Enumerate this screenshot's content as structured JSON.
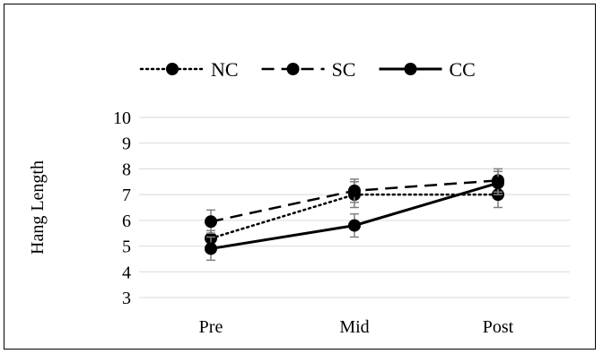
{
  "chart_data": {
    "type": "line",
    "title": "",
    "xlabel": "",
    "ylabel": "Hang Length",
    "categories": [
      "Pre",
      "Mid",
      "Post"
    ],
    "ylim": [
      3,
      10
    ],
    "yticks": [
      3,
      4,
      5,
      6,
      7,
      8,
      9,
      10
    ],
    "grid": true,
    "legend_position": "top",
    "error_bars": true,
    "series": [
      {
        "name": "NC",
        "style": "dotted",
        "color": "#000000",
        "values": [
          5.3,
          7.0,
          7.0
        ],
        "errors": [
          0.3,
          0.5,
          0.5
        ]
      },
      {
        "name": "SC",
        "style": "dashed",
        "color": "#000000",
        "values": [
          5.95,
          7.15,
          7.55
        ],
        "errors": [
          0.45,
          0.45,
          0.45
        ]
      },
      {
        "name": "CC",
        "style": "solid",
        "color": "#000000",
        "values": [
          4.9,
          5.8,
          7.45
        ],
        "errors": [
          0.45,
          0.45,
          0.45
        ]
      }
    ]
  }
}
